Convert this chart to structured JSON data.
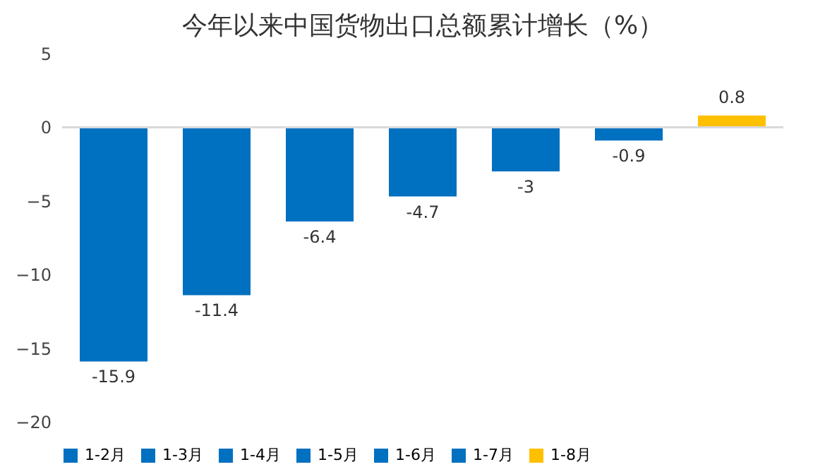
{
  "chart_data": {
    "type": "bar",
    "title": "今年以来中国货物出口总额累计增长（%）",
    "categories": [
      null,
      null,
      null,
      null,
      null,
      null,
      null
    ],
    "series": [
      {
        "name": "1-2月",
        "color": "#0070c0",
        "values": [
          -15.9,
          null,
          null,
          null,
          null,
          null,
          null
        ]
      },
      {
        "name": "1-3月",
        "color": "#0070c0",
        "values": [
          null,
          -11.4,
          null,
          null,
          null,
          null,
          null
        ]
      },
      {
        "name": "1-4月",
        "color": "#0070c0",
        "values": [
          null,
          null,
          -6.4,
          null,
          null,
          null,
          null
        ]
      },
      {
        "name": "1-5月",
        "color": "#0070c0",
        "values": [
          null,
          null,
          null,
          -4.7,
          null,
          null,
          null
        ]
      },
      {
        "name": "1-6月",
        "color": "#0070c0",
        "values": [
          null,
          null,
          null,
          null,
          -3,
          null,
          null
        ]
      },
      {
        "name": "1-7月",
        "color": "#0070c0",
        "values": [
          null,
          null,
          null,
          null,
          null,
          -0.9,
          null
        ]
      },
      {
        "name": "1-8月",
        "color": "#ffc000",
        "values": [
          null,
          null,
          null,
          null,
          null,
          null,
          0.8
        ]
      }
    ],
    "ylim": [
      -20,
      5
    ],
    "yticks": [
      -20,
      -15,
      -10,
      -5,
      0,
      5
    ],
    "ref_lines": [
      {
        "axis": "y",
        "value": 0,
        "color": "#d9d9d9"
      }
    ],
    "legend": "bottom",
    "tick_labels": "y",
    "data_labels": true
  }
}
